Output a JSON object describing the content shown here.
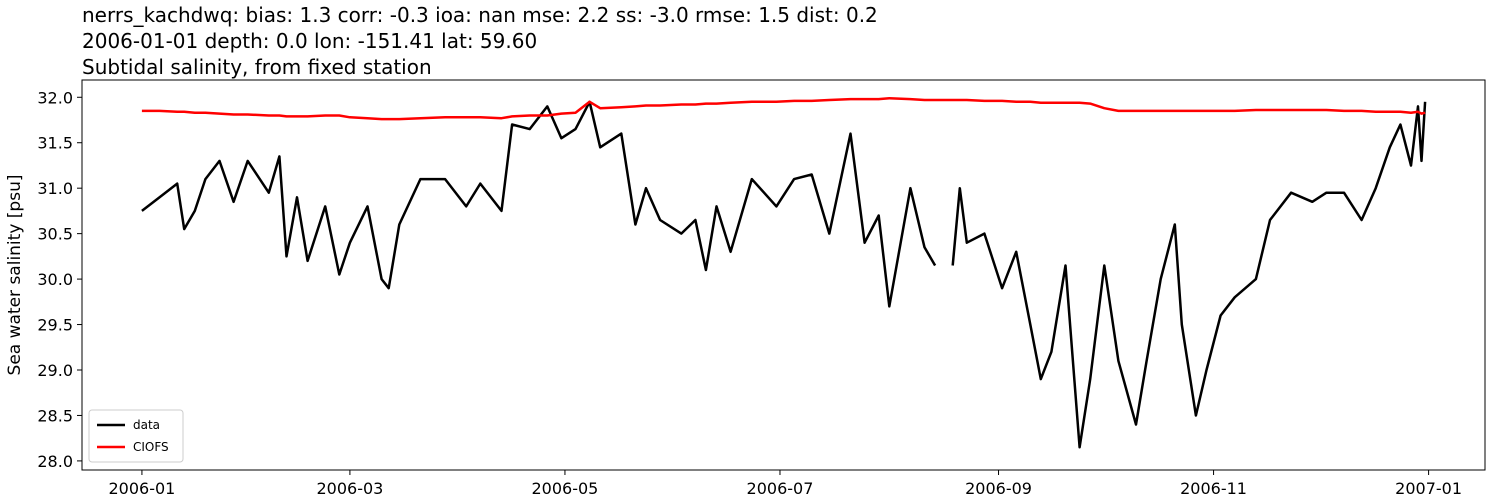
{
  "chart_data": {
    "type": "line",
    "title_lines": [
      "nerrs_kachdwq: bias: 1.3  corr: -0.3  ioa: nan  mse: 2.2  ss: -3.0  rmse: 1.5  dist: 0.2",
      "2006-01-01 depth: 0.0 lon: -151.41 lat: 59.60",
      "Subtidal salinity, from fixed station"
    ],
    "ylabel": "Sea water salinity [psu]",
    "x": [
      "2006-01-01",
      "2006-01-06",
      "2006-01-11",
      "2006-01-13",
      "2006-01-16",
      "2006-01-19",
      "2006-01-23",
      "2006-01-27",
      "2006-01-31",
      "2006-02-06",
      "2006-02-09",
      "2006-02-11",
      "2006-02-14",
      "2006-02-17",
      "2006-02-22",
      "2006-02-26",
      "2006-03-01",
      "2006-03-06",
      "2006-03-10",
      "2006-03-12",
      "2006-03-15",
      "2006-03-21",
      "2006-03-28",
      "2006-04-03",
      "2006-04-07",
      "2006-04-13",
      "2006-04-16",
      "2006-04-21",
      "2006-04-26",
      "2006-04-30",
      "2006-05-04",
      "2006-05-08",
      "2006-05-11",
      "2006-05-17",
      "2006-05-21",
      "2006-05-24",
      "2006-05-28",
      "2006-06-03",
      "2006-06-07",
      "2006-06-10",
      "2006-06-13",
      "2006-06-17",
      "2006-06-23",
      "2006-06-30",
      "2006-07-05",
      "2006-07-10",
      "2006-07-15",
      "2006-07-21",
      "2006-07-25",
      "2006-07-29",
      "2006-08-01",
      "2006-08-07",
      "2006-08-11",
      "2006-08-14",
      "2006-08-16",
      "2006-08-19",
      "2006-08-21",
      "2006-08-23",
      "2006-08-28",
      "2006-09-02",
      "2006-09-06",
      "2006-09-10",
      "2006-09-13",
      "2006-09-16",
      "2006-09-20",
      "2006-09-24",
      "2006-09-27",
      "2006-10-01",
      "2006-10-05",
      "2006-10-10",
      "2006-10-13",
      "2006-10-17",
      "2006-10-21",
      "2006-10-23",
      "2006-10-27",
      "2006-10-30",
      "2006-11-03",
      "2006-11-07",
      "2006-11-13",
      "2006-11-17",
      "2006-11-23",
      "2006-11-29",
      "2006-12-03",
      "2006-12-08",
      "2006-12-13",
      "2006-12-17",
      "2006-12-21",
      "2006-12-24",
      "2006-12-27",
      "2006-12-29",
      "2006-12-30",
      "2006-12-31"
    ],
    "series": [
      {
        "name": "data",
        "color": "#000000",
        "values": [
          30.75,
          30.9,
          31.05,
          30.55,
          30.75,
          31.1,
          31.3,
          30.85,
          31.3,
          30.95,
          31.35,
          30.25,
          30.9,
          30.2,
          30.8,
          30.05,
          30.4,
          30.8,
          30.0,
          29.9,
          30.6,
          31.1,
          31.1,
          30.8,
          31.05,
          30.75,
          31.7,
          31.65,
          31.9,
          31.55,
          31.65,
          31.95,
          31.45,
          31.6,
          30.6,
          31.0,
          30.65,
          30.5,
          30.65,
          30.1,
          30.8,
          30.3,
          31.1,
          30.8,
          31.1,
          31.15,
          30.5,
          31.6,
          30.4,
          30.7,
          29.7,
          31.0,
          30.35,
          30.15,
          null,
          30.15,
          31.0,
          30.4,
          30.5,
          29.9,
          30.3,
          29.5,
          28.9,
          29.2,
          30.15,
          28.15,
          28.9,
          30.15,
          29.1,
          28.4,
          29.1,
          30.0,
          30.6,
          29.5,
          28.5,
          29.0,
          29.6,
          29.8,
          30.0,
          30.65,
          30.95,
          30.85,
          30.95,
          30.95,
          30.65,
          31.0,
          31.45,
          31.7,
          31.25,
          31.9,
          31.3,
          31.95
        ]
      },
      {
        "name": "CIOFS",
        "color": "#ff0000",
        "values": [
          31.85,
          31.85,
          31.84,
          31.84,
          31.83,
          31.83,
          31.82,
          31.81,
          31.81,
          31.8,
          31.8,
          31.79,
          31.79,
          31.79,
          31.8,
          31.8,
          31.78,
          31.77,
          31.76,
          31.76,
          31.76,
          31.77,
          31.78,
          31.78,
          31.78,
          31.77,
          31.79,
          31.8,
          31.8,
          31.82,
          31.83,
          31.95,
          31.88,
          31.89,
          31.9,
          31.91,
          31.91,
          31.92,
          31.92,
          31.93,
          31.93,
          31.94,
          31.95,
          31.95,
          31.96,
          31.96,
          31.97,
          31.98,
          31.98,
          31.98,
          31.99,
          31.98,
          31.97,
          31.97,
          31.97,
          31.97,
          31.97,
          31.97,
          31.96,
          31.96,
          31.95,
          31.95,
          31.94,
          31.94,
          31.94,
          31.94,
          31.93,
          31.88,
          31.85,
          31.85,
          31.85,
          31.85,
          31.85,
          31.85,
          31.85,
          31.85,
          31.85,
          31.85,
          31.86,
          31.86,
          31.86,
          31.86,
          31.86,
          31.85,
          31.85,
          31.84,
          31.84,
          31.84,
          31.83,
          31.84,
          31.82,
          31.83
        ]
      }
    ],
    "xlim": [
      "2005-12-15",
      "2007-01-17"
    ],
    "xticks": [
      {
        "value": "2006-01-01",
        "label": "2006-01"
      },
      {
        "value": "2006-03-01",
        "label": "2006-03"
      },
      {
        "value": "2006-05-01",
        "label": "2006-05"
      },
      {
        "value": "2006-07-01",
        "label": "2006-07"
      },
      {
        "value": "2006-09-01",
        "label": "2006-09"
      },
      {
        "value": "2006-11-01",
        "label": "2006-11"
      },
      {
        "value": "2007-01-01",
        "label": "2007-01"
      }
    ],
    "ylim": [
      27.9,
      32.19
    ],
    "yticks": [
      {
        "value": 28,
        "label": "28.0"
      },
      {
        "value": 28.5,
        "label": "28.5"
      },
      {
        "value": 29,
        "label": "29.0"
      },
      {
        "value": 29.5,
        "label": "29.5"
      },
      {
        "value": 30,
        "label": "30.0"
      },
      {
        "value": 30.5,
        "label": "30.5"
      },
      {
        "value": 31,
        "label": "31.0"
      },
      {
        "value": 31.5,
        "label": "31.5"
      },
      {
        "value": 32,
        "label": "32.0"
      }
    ],
    "legend": "lower left"
  }
}
